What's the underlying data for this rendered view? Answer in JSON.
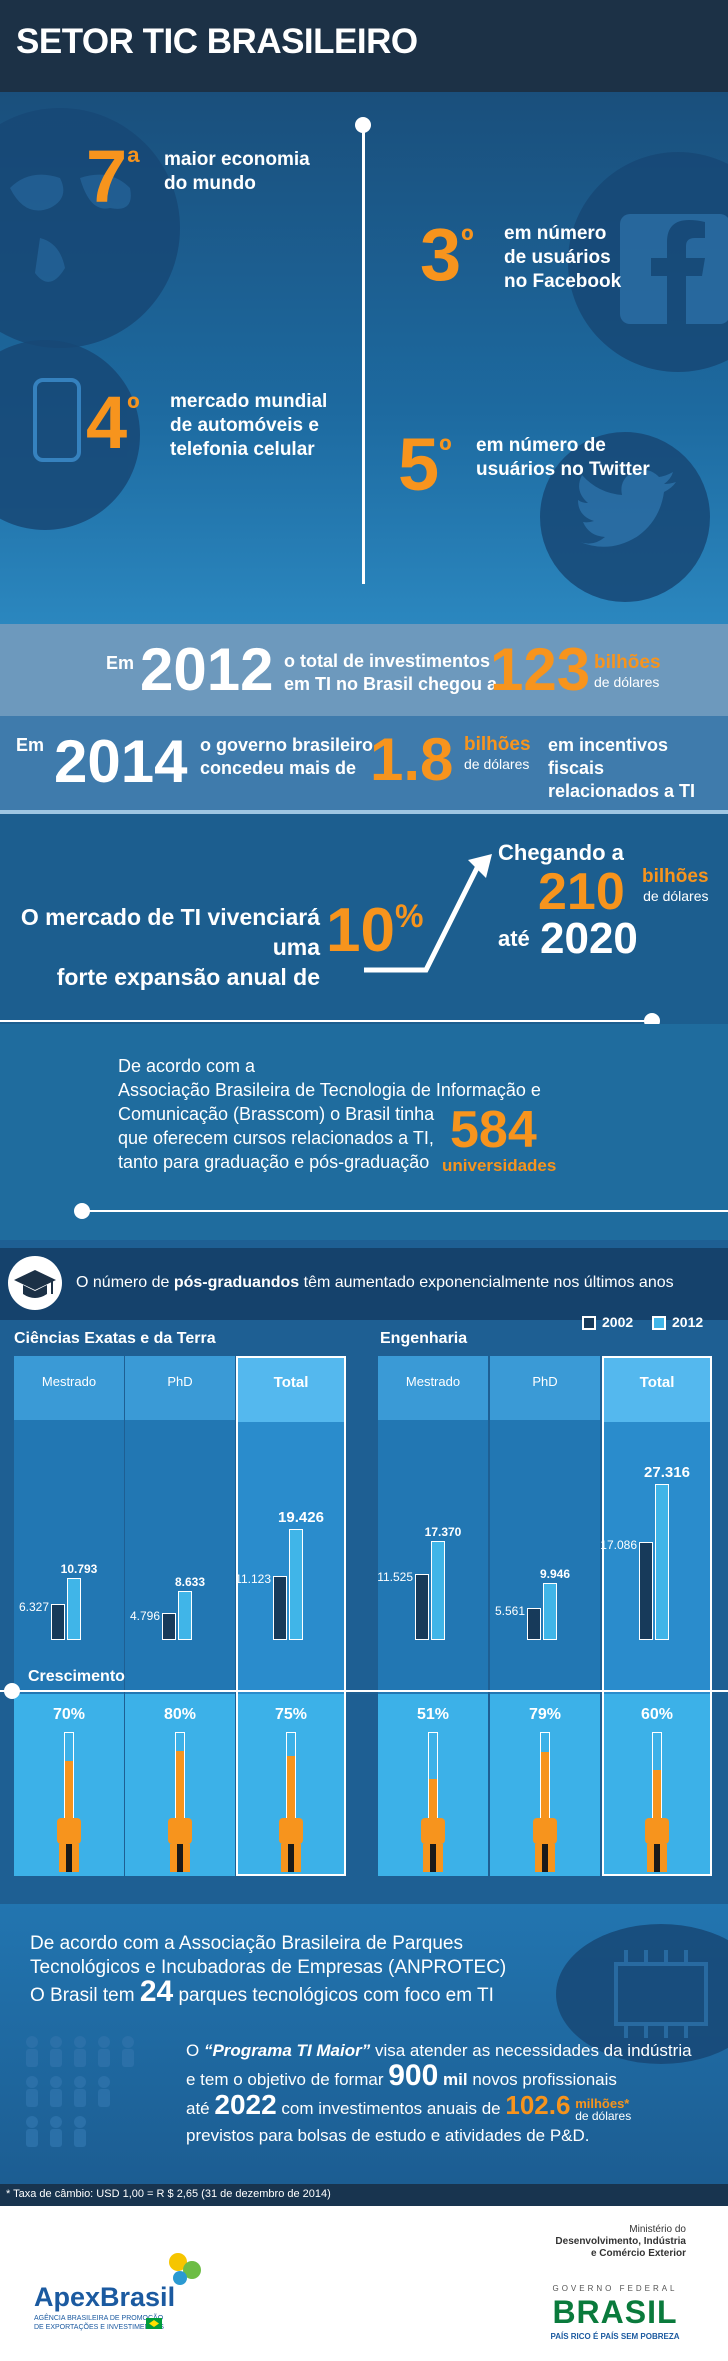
{
  "header": {
    "title": "SETOR TIC BRASILEIRO"
  },
  "hero": {
    "r1": {
      "num": "7",
      "sup": "ª",
      "text": [
        "maior  economia",
        "do  mundo"
      ]
    },
    "r2": {
      "num": "3",
      "sup": "º",
      "text": [
        "em número",
        "de usuários",
        "no Facebook"
      ]
    },
    "r3": {
      "num": "4",
      "sup": "º",
      "text": [
        "mercado mundial",
        "de automóveis e",
        "telefonia celular"
      ]
    },
    "r4": {
      "num": "5",
      "sup": "º",
      "text": [
        "em número de",
        "usuários no Twitter"
      ]
    }
  },
  "inv2012": {
    "em": "Em",
    "year": "2012",
    "text": [
      "o total de investimentos",
      "em TI no Brasil chegou a"
    ],
    "value": "123",
    "unit": "bilhões",
    "unit2": "de dólares"
  },
  "inv2014": {
    "em": "Em",
    "year": "2014",
    "text": [
      "o governo brasileiro",
      "concedeu mais de"
    ],
    "value": "1.8",
    "unit": "bilhões",
    "unit2": "de dólares",
    "tail": [
      "em incentivos fiscais",
      "relacionados a TI"
    ]
  },
  "growth": {
    "text": [
      "O mercado de TI vivenciará uma",
      "forte expansão anual de"
    ],
    "pct": "10",
    "pct_sym": "%",
    "chegando": "Chegando a",
    "value": "210",
    "unit": "bilhões",
    "unit2": "de dólares",
    "ate": "até",
    "year": "2020"
  },
  "brasscom": {
    "text": [
      "De acordo com a",
      "Associação Brasileira de Tecnologia de Informação e",
      "Comunicação (Brasscom) o Brasil tinha",
      "que oferecem cursos relacionados a TI,",
      "tanto para graduação e pós-graduação"
    ],
    "value": "584",
    "unit": "universidades"
  },
  "pos": {
    "pre": "O número de ",
    "bold": "pós-graduandos",
    "post": " têm aumentado exponencialmente nos últimos anos"
  },
  "legend": {
    "y1": "2002",
    "y2": "2012"
  },
  "groups": {
    "left": "Ciências Exatas e da Terra",
    "right": "Engenharia"
  },
  "crescimento": "Crescimento",
  "columns": [
    {
      "label": "Mestrado",
      "v2002": "6.327",
      "v2012": "10.793",
      "growth": "70%",
      "n2002": 6327,
      "n2012": 10793,
      "g": 0.7
    },
    {
      "label": "PhD",
      "v2002": "4.796",
      "v2012": "8.633",
      "growth": "80%",
      "n2002": 4796,
      "n2012": 8633,
      "g": 0.8
    },
    {
      "label": "Total",
      "v2002": "11.123",
      "v2012": "19.426",
      "growth": "75%",
      "n2002": 11123,
      "n2012": 19426,
      "g": 0.75
    },
    {
      "label": "Mestrado",
      "v2002": "11.525",
      "v2012": "17.370",
      "growth": "51%",
      "n2002": 11525,
      "n2012": 17370,
      "g": 0.51
    },
    {
      "label": "PhD",
      "v2002": "5.561",
      "v2012": "9.946",
      "growth": "79%",
      "n2002": 5561,
      "n2012": 9946,
      "g": 0.79
    },
    {
      "label": "Total",
      "v2002": "17.086",
      "v2012": "27.316",
      "growth": "60%",
      "n2002": 17086,
      "n2012": 27316,
      "g": 0.6
    }
  ],
  "anprotec": {
    "l1": "De acordo com a Associação Brasileira de Parques",
    "l2": "Tecnológicos e Incubadoras de Empresas (ANPROTEC)",
    "l3a": "O Brasil tem",
    "num": "24",
    "l3b": "parques tecnológicos com foco em TI"
  },
  "programa": {
    "o": "O",
    "name": "“Programa TI Maior”",
    "l1": "visa atender as necessidades da indústria",
    "l2a": "e tem o objetivo de formar",
    "num": "900",
    "mil": "mil",
    "l2b": "novos profissionais",
    "ate": "até",
    "year": "2022",
    "l3": "com investimentos anuais de",
    "value": "102.6",
    "unit": "milhões*",
    "unit2": "de dólares",
    "l4": "previstos para bolsas de estudo e atividades de P&D."
  },
  "footnote": "* Taxa de câmbio: USD 1,00 = R $ 2,65 (31 de dezembro de 2014)",
  "footer": {
    "apex": "ApexBrasil",
    "apex_sub": [
      "AGÊNCIA BRASILEIRA DE PROMOÇÃO",
      "DE EXPORTAÇÕES E INVESTIMENTOS"
    ],
    "ministry": [
      "Ministério do",
      "Desenvolvimento, Indústria",
      "e Comércio Exterior"
    ],
    "gov": "GOVERNO FEDERAL",
    "brasil": "BRASIL",
    "slogan": "PAÍS RICO É PAÍS SEM POBREZA"
  }
}
